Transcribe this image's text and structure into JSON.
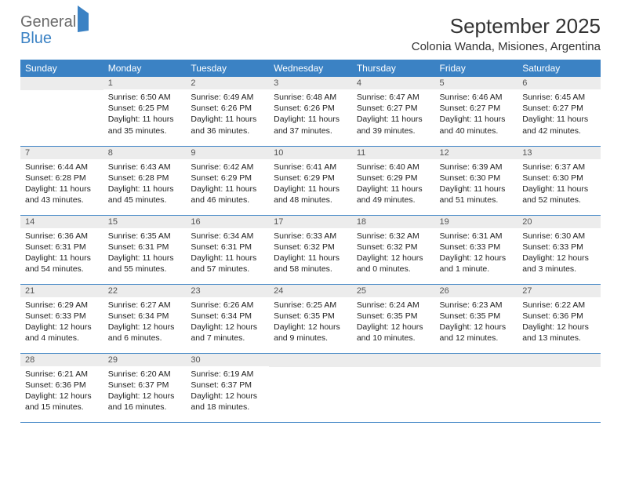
{
  "logo": {
    "line1": "General",
    "line2": "Blue"
  },
  "title": "September 2025",
  "location": "Colonia Wanda, Misiones, Argentina",
  "colors": {
    "header_bg": "#3b82c4",
    "header_text": "#ffffff",
    "daynum_bg": "#ececec",
    "row_border": "#3b82c4",
    "logo_gray": "#6b6b6b",
    "logo_blue": "#3b82c4",
    "background": "#ffffff"
  },
  "weekdays": [
    "Sunday",
    "Monday",
    "Tuesday",
    "Wednesday",
    "Thursday",
    "Friday",
    "Saturday"
  ],
  "weeks": [
    [
      {
        "num": "",
        "sunrise": "",
        "sunset": "",
        "daylight": ""
      },
      {
        "num": "1",
        "sunrise": "Sunrise: 6:50 AM",
        "sunset": "Sunset: 6:25 PM",
        "daylight": "Daylight: 11 hours and 35 minutes."
      },
      {
        "num": "2",
        "sunrise": "Sunrise: 6:49 AM",
        "sunset": "Sunset: 6:26 PM",
        "daylight": "Daylight: 11 hours and 36 minutes."
      },
      {
        "num": "3",
        "sunrise": "Sunrise: 6:48 AM",
        "sunset": "Sunset: 6:26 PM",
        "daylight": "Daylight: 11 hours and 37 minutes."
      },
      {
        "num": "4",
        "sunrise": "Sunrise: 6:47 AM",
        "sunset": "Sunset: 6:27 PM",
        "daylight": "Daylight: 11 hours and 39 minutes."
      },
      {
        "num": "5",
        "sunrise": "Sunrise: 6:46 AM",
        "sunset": "Sunset: 6:27 PM",
        "daylight": "Daylight: 11 hours and 40 minutes."
      },
      {
        "num": "6",
        "sunrise": "Sunrise: 6:45 AM",
        "sunset": "Sunset: 6:27 PM",
        "daylight": "Daylight: 11 hours and 42 minutes."
      }
    ],
    [
      {
        "num": "7",
        "sunrise": "Sunrise: 6:44 AM",
        "sunset": "Sunset: 6:28 PM",
        "daylight": "Daylight: 11 hours and 43 minutes."
      },
      {
        "num": "8",
        "sunrise": "Sunrise: 6:43 AM",
        "sunset": "Sunset: 6:28 PM",
        "daylight": "Daylight: 11 hours and 45 minutes."
      },
      {
        "num": "9",
        "sunrise": "Sunrise: 6:42 AM",
        "sunset": "Sunset: 6:29 PM",
        "daylight": "Daylight: 11 hours and 46 minutes."
      },
      {
        "num": "10",
        "sunrise": "Sunrise: 6:41 AM",
        "sunset": "Sunset: 6:29 PM",
        "daylight": "Daylight: 11 hours and 48 minutes."
      },
      {
        "num": "11",
        "sunrise": "Sunrise: 6:40 AM",
        "sunset": "Sunset: 6:29 PM",
        "daylight": "Daylight: 11 hours and 49 minutes."
      },
      {
        "num": "12",
        "sunrise": "Sunrise: 6:39 AM",
        "sunset": "Sunset: 6:30 PM",
        "daylight": "Daylight: 11 hours and 51 minutes."
      },
      {
        "num": "13",
        "sunrise": "Sunrise: 6:37 AM",
        "sunset": "Sunset: 6:30 PM",
        "daylight": "Daylight: 11 hours and 52 minutes."
      }
    ],
    [
      {
        "num": "14",
        "sunrise": "Sunrise: 6:36 AM",
        "sunset": "Sunset: 6:31 PM",
        "daylight": "Daylight: 11 hours and 54 minutes."
      },
      {
        "num": "15",
        "sunrise": "Sunrise: 6:35 AM",
        "sunset": "Sunset: 6:31 PM",
        "daylight": "Daylight: 11 hours and 55 minutes."
      },
      {
        "num": "16",
        "sunrise": "Sunrise: 6:34 AM",
        "sunset": "Sunset: 6:31 PM",
        "daylight": "Daylight: 11 hours and 57 minutes."
      },
      {
        "num": "17",
        "sunrise": "Sunrise: 6:33 AM",
        "sunset": "Sunset: 6:32 PM",
        "daylight": "Daylight: 11 hours and 58 minutes."
      },
      {
        "num": "18",
        "sunrise": "Sunrise: 6:32 AM",
        "sunset": "Sunset: 6:32 PM",
        "daylight": "Daylight: 12 hours and 0 minutes."
      },
      {
        "num": "19",
        "sunrise": "Sunrise: 6:31 AM",
        "sunset": "Sunset: 6:33 PM",
        "daylight": "Daylight: 12 hours and 1 minute."
      },
      {
        "num": "20",
        "sunrise": "Sunrise: 6:30 AM",
        "sunset": "Sunset: 6:33 PM",
        "daylight": "Daylight: 12 hours and 3 minutes."
      }
    ],
    [
      {
        "num": "21",
        "sunrise": "Sunrise: 6:29 AM",
        "sunset": "Sunset: 6:33 PM",
        "daylight": "Daylight: 12 hours and 4 minutes."
      },
      {
        "num": "22",
        "sunrise": "Sunrise: 6:27 AM",
        "sunset": "Sunset: 6:34 PM",
        "daylight": "Daylight: 12 hours and 6 minutes."
      },
      {
        "num": "23",
        "sunrise": "Sunrise: 6:26 AM",
        "sunset": "Sunset: 6:34 PM",
        "daylight": "Daylight: 12 hours and 7 minutes."
      },
      {
        "num": "24",
        "sunrise": "Sunrise: 6:25 AM",
        "sunset": "Sunset: 6:35 PM",
        "daylight": "Daylight: 12 hours and 9 minutes."
      },
      {
        "num": "25",
        "sunrise": "Sunrise: 6:24 AM",
        "sunset": "Sunset: 6:35 PM",
        "daylight": "Daylight: 12 hours and 10 minutes."
      },
      {
        "num": "26",
        "sunrise": "Sunrise: 6:23 AM",
        "sunset": "Sunset: 6:35 PM",
        "daylight": "Daylight: 12 hours and 12 minutes."
      },
      {
        "num": "27",
        "sunrise": "Sunrise: 6:22 AM",
        "sunset": "Sunset: 6:36 PM",
        "daylight": "Daylight: 12 hours and 13 minutes."
      }
    ],
    [
      {
        "num": "28",
        "sunrise": "Sunrise: 6:21 AM",
        "sunset": "Sunset: 6:36 PM",
        "daylight": "Daylight: 12 hours and 15 minutes."
      },
      {
        "num": "29",
        "sunrise": "Sunrise: 6:20 AM",
        "sunset": "Sunset: 6:37 PM",
        "daylight": "Daylight: 12 hours and 16 minutes."
      },
      {
        "num": "30",
        "sunrise": "Sunrise: 6:19 AM",
        "sunset": "Sunset: 6:37 PM",
        "daylight": "Daylight: 12 hours and 18 minutes."
      },
      {
        "num": "",
        "sunrise": "",
        "sunset": "",
        "daylight": ""
      },
      {
        "num": "",
        "sunrise": "",
        "sunset": "",
        "daylight": ""
      },
      {
        "num": "",
        "sunrise": "",
        "sunset": "",
        "daylight": ""
      },
      {
        "num": "",
        "sunrise": "",
        "sunset": "",
        "daylight": ""
      }
    ]
  ]
}
